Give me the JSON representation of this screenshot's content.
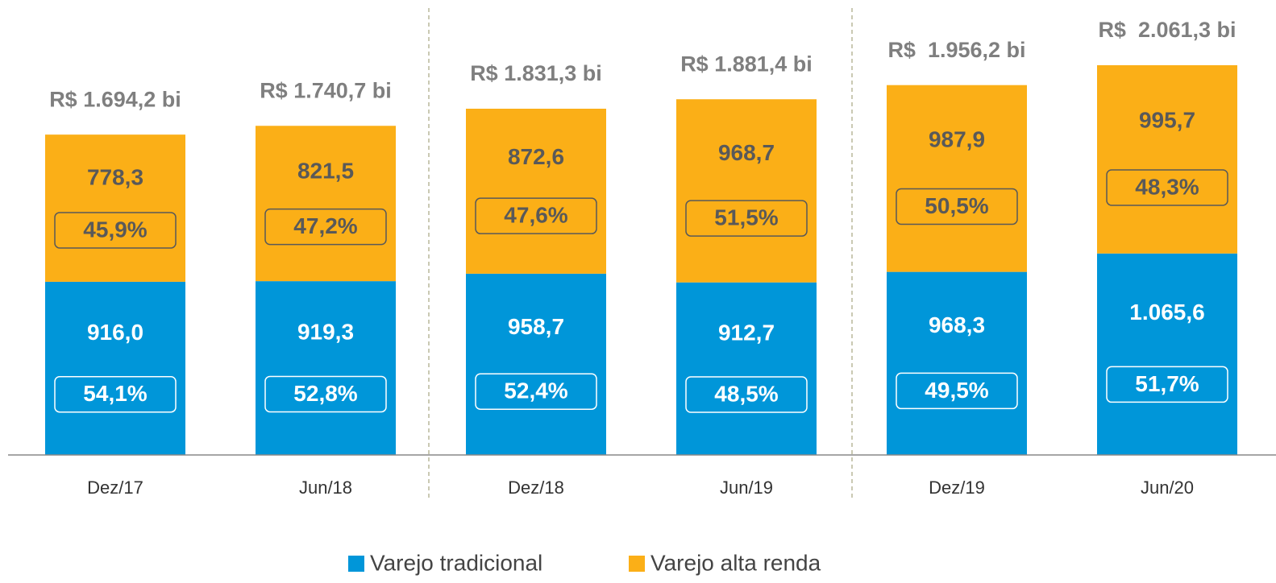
{
  "chart_data": {
    "type": "stacked_bar",
    "categories": [
      "Dez/17",
      "Jun/18",
      "Dez/18",
      "Jun/19",
      "Dez/19",
      "Jun/20"
    ],
    "series": [
      {
        "name": "Varejo tradicional",
        "color": "#0096d9",
        "values": [
          916.0,
          919.3,
          958.7,
          912.7,
          968.3,
          1065.6
        ],
        "value_labels": [
          "916,0",
          "919,3",
          "958,7",
          "912,7",
          "968,3",
          "1.065,6"
        ],
        "share_labels": [
          "54,1%",
          "52,8%",
          "52,4%",
          "48,5%",
          "49,5%",
          "51,7%"
        ]
      },
      {
        "name": "Varejo alta renda",
        "color": "#fbaf17",
        "values": [
          778.3,
          821.5,
          872.6,
          968.7,
          987.9,
          995.7
        ],
        "value_labels": [
          "778,3",
          "821,5",
          "872,6",
          "968,7",
          "987,9",
          "995,7"
        ],
        "share_labels": [
          "45,9%",
          "47,2%",
          "47,6%",
          "51,5%",
          "50,5%",
          "48,3%"
        ]
      }
    ],
    "totals": [
      1694.2,
      1740.7,
      1831.3,
      1881.4,
      1956.2,
      2061.3
    ],
    "total_labels": [
      "R$ 1.694,2 bi",
      "R$ 1.740,7 bi",
      "R$ 1.831,3 bi",
      "R$ 1.881,4 bi",
      "R$  1.956,2 bi",
      "R$  2.061,3 bi"
    ]
  }
}
